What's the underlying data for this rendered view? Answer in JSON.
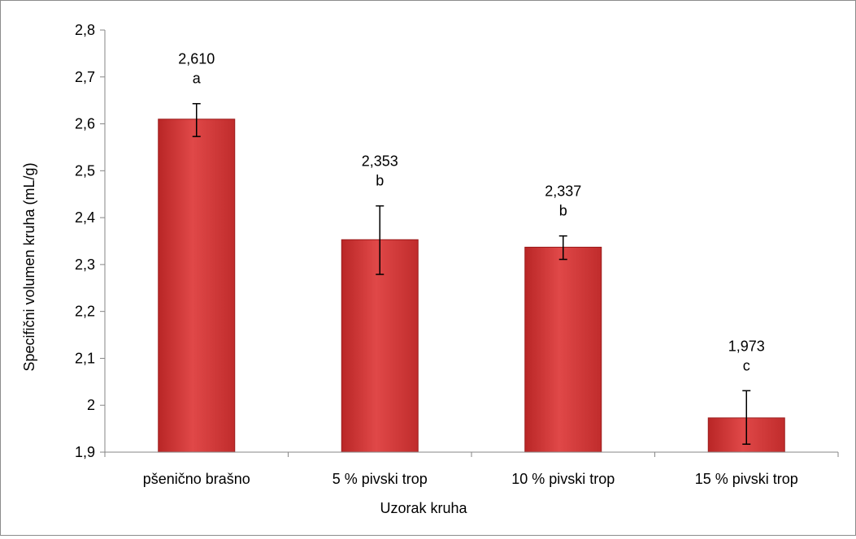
{
  "chart_data": {
    "type": "bar",
    "categories": [
      "pšenično brašno",
      "5 % pivski trop",
      "10 % pivski trop",
      "15 % pivski trop"
    ],
    "values": [
      2.61,
      2.353,
      2.337,
      1.973
    ],
    "value_labels": [
      "2,610",
      "2,353",
      "2,337",
      "1,973"
    ],
    "significance_letters": [
      "a",
      "b",
      "b",
      "c"
    ],
    "error_bars": [
      {
        "low": 2.573,
        "high": 2.643
      },
      {
        "low": 2.279,
        "high": 2.425
      },
      {
        "low": 2.311,
        "high": 2.361
      },
      {
        "low": 1.917,
        "high": 2.031
      }
    ],
    "ylim": [
      1.9,
      2.8
    ],
    "yticks": [
      1.9,
      2.0,
      2.1,
      2.2,
      2.3,
      2.4,
      2.5,
      2.6,
      2.7,
      2.8
    ],
    "ytick_labels": [
      "1,9",
      "2",
      "2,1",
      "2,2",
      "2,3",
      "2,4",
      "2,5",
      "2,6",
      "2,7",
      "2,8"
    ],
    "xlabel": "Uzorak kruha",
    "ylabel": "Specifični volumen kruha (mL/g)",
    "grid": false,
    "legend": "none",
    "colors": {
      "bar_fill": "#d63c3c",
      "bar_edge": "#9b1c1c",
      "axis": "#868686",
      "frame": "#8c8c8c"
    }
  }
}
